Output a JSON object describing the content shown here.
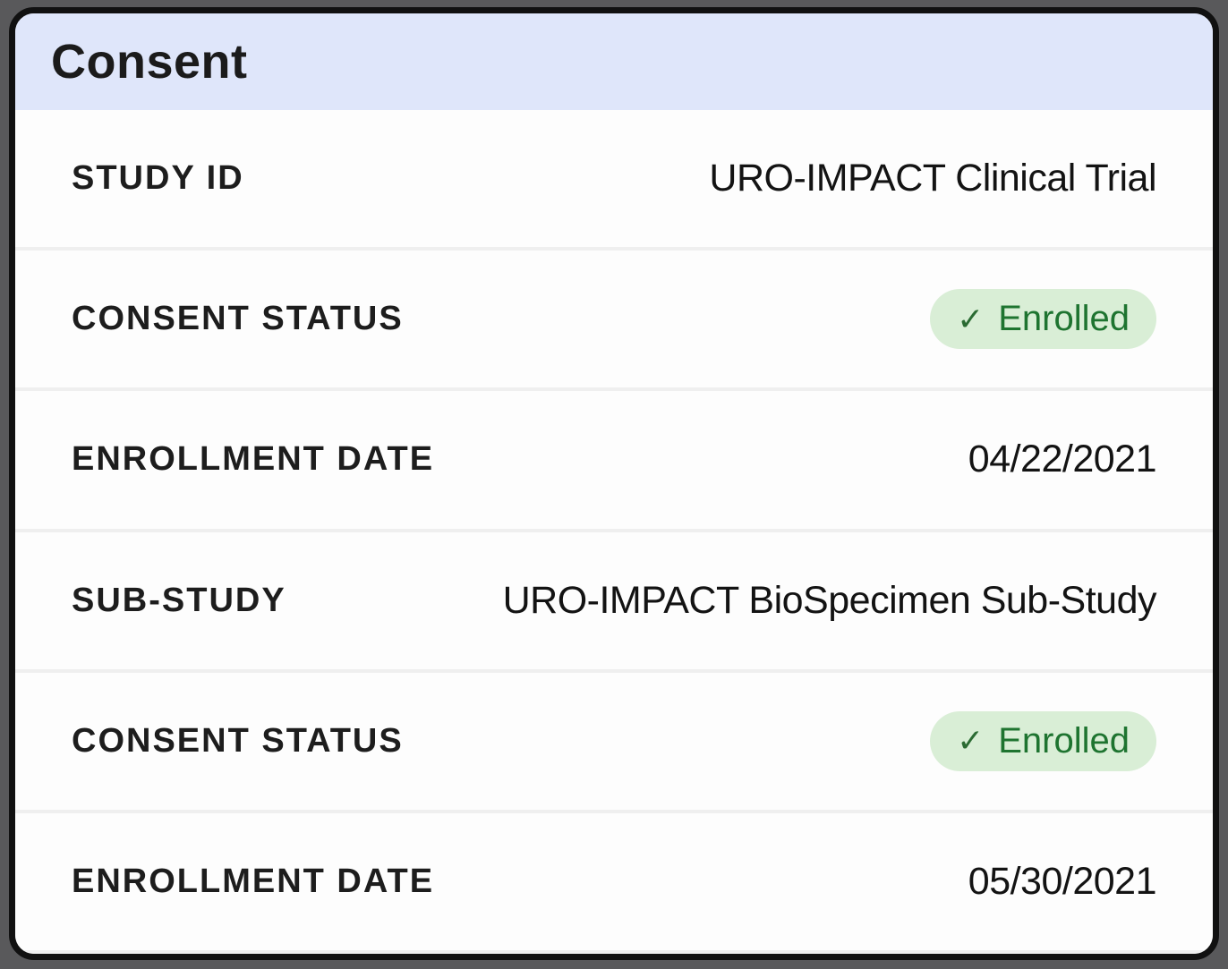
{
  "theme": {
    "page_bg": "#59595b",
    "card_bg": "#fdfdfd",
    "card_border": "#111111",
    "header_bg": "#dfe6fa",
    "divider": "#efefef",
    "badge_bg": "#d9eed6",
    "badge_text": "#1e7430"
  },
  "icons": {
    "check": "✓"
  },
  "card": {
    "title": "Consent",
    "rows": [
      {
        "label": "STUDY ID",
        "value": "URO-IMPACT Clinical Trial"
      },
      {
        "label": "CONSENT STATUS",
        "value": "Enrolled"
      },
      {
        "label": "ENROLLMENT DATE",
        "value": "04/22/2021"
      },
      {
        "label": "SUB-STUDY",
        "value": "URO-IMPACT BioSpecimen Sub-Study"
      },
      {
        "label": "CONSENT STATUS",
        "value": "Enrolled"
      },
      {
        "label": "ENROLLMENT DATE",
        "value": "05/30/2021"
      }
    ]
  }
}
